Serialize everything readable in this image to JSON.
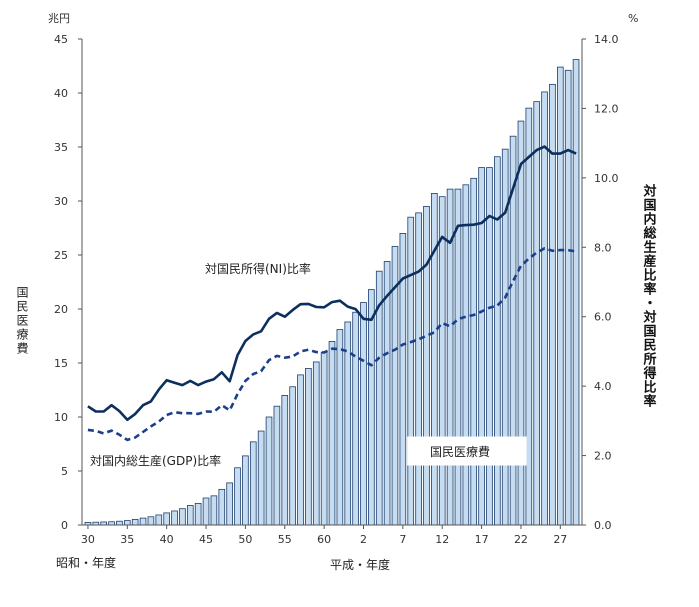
{
  "chart_data": {
    "type": "bar",
    "left_unit": "兆円",
    "right_unit": "%",
    "y_left_label": "国民医療費",
    "y_right_label": "対国内総生産比率・対国民所得比率",
    "x_label_showa": "昭和・年度",
    "x_label_heisei": "平成・年度",
    "ylim_left": [
      0,
      45
    ],
    "ylim_right": [
      0,
      14
    ],
    "left_ticks": [
      "0",
      "5",
      "10",
      "15",
      "20",
      "25",
      "30",
      "35",
      "40",
      "45"
    ],
    "right_ticks": [
      "0.0",
      "2.0",
      "4.0",
      "6.0",
      "8.0",
      "10.0",
      "12.0",
      "14.0"
    ],
    "x_ticks": [
      {
        "label": "30",
        "index": 0
      },
      {
        "label": "35",
        "index": 5
      },
      {
        "label": "40",
        "index": 10
      },
      {
        "label": "45",
        "index": 15
      },
      {
        "label": "50",
        "index": 20
      },
      {
        "label": "55",
        "index": 25
      },
      {
        "label": "60",
        "index": 30
      },
      {
        "label": "2",
        "index": 35
      },
      {
        "label": "7",
        "index": 40
      },
      {
        "label": "12",
        "index": 45
      },
      {
        "label": "17",
        "index": 50
      },
      {
        "label": "22",
        "index": 55
      },
      {
        "label": "27",
        "index": 60
      }
    ],
    "legend_bar": "国民医療費",
    "series": [
      {
        "name": "国民医療費",
        "type": "bar",
        "axis": "left",
        "color": "#c6dcf0",
        "values": [
          0.24,
          0.26,
          0.28,
          0.3,
          0.35,
          0.41,
          0.52,
          0.64,
          0.76,
          0.93,
          1.12,
          1.3,
          1.51,
          1.81,
          2.0,
          2.5,
          2.7,
          3.3,
          3.9,
          5.3,
          6.4,
          7.7,
          8.7,
          10.0,
          11.0,
          12.0,
          12.8,
          13.9,
          14.5,
          15.1,
          16.0,
          17.0,
          18.1,
          18.8,
          19.7,
          20.6,
          21.8,
          23.5,
          24.4,
          25.8,
          27.0,
          28.5,
          28.9,
          29.5,
          30.7,
          30.4,
          31.1,
          31.1,
          31.5,
          32.1,
          33.1,
          33.1,
          34.1,
          34.8,
          36.0,
          37.4,
          38.6,
          39.2,
          40.1,
          40.8,
          42.4,
          42.1,
          43.1
        ]
      },
      {
        "name": "対国民所得(NI)比率",
        "type": "line",
        "axis": "right",
        "style": "solid",
        "color": "#0d2f5e",
        "values": [
          3.42,
          3.27,
          3.27,
          3.45,
          3.28,
          3.03,
          3.2,
          3.45,
          3.56,
          3.9,
          4.17,
          4.1,
          4.03,
          4.15,
          4.03,
          4.13,
          4.2,
          4.4,
          4.14,
          4.89,
          5.3,
          5.49,
          5.58,
          5.94,
          6.11,
          6.0,
          6.19,
          6.36,
          6.37,
          6.28,
          6.27,
          6.42,
          6.46,
          6.29,
          6.22,
          5.94,
          5.91,
          6.33,
          6.6,
          6.85,
          7.1,
          7.2,
          7.3,
          7.5,
          7.9,
          8.3,
          8.13,
          8.62,
          8.64,
          8.65,
          8.7,
          8.9,
          8.8,
          9.0,
          9.7,
          10.4,
          10.6,
          10.8,
          10.9,
          10.7,
          10.7,
          10.8,
          10.7
        ]
      },
      {
        "name": "対国内総生産(GDP)比率",
        "type": "line",
        "axis": "right",
        "style": "dashed",
        "color": "#1b3f8b",
        "values": [
          2.74,
          2.71,
          2.64,
          2.72,
          2.6,
          2.45,
          2.52,
          2.68,
          2.84,
          2.98,
          3.17,
          3.25,
          3.22,
          3.22,
          3.2,
          3.27,
          3.26,
          3.45,
          3.3,
          3.77,
          4.15,
          4.35,
          4.43,
          4.75,
          4.87,
          4.82,
          4.85,
          5.0,
          5.05,
          4.98,
          4.97,
          5.08,
          5.07,
          5.0,
          4.85,
          4.73,
          4.6,
          4.82,
          4.95,
          5.05,
          5.2,
          5.27,
          5.35,
          5.45,
          5.55,
          5.82,
          5.72,
          5.93,
          6.0,
          6.05,
          6.15,
          6.26,
          6.32,
          6.55,
          7.03,
          7.47,
          7.67,
          7.85,
          7.97,
          7.9,
          7.92,
          7.92,
          7.88
        ]
      }
    ]
  },
  "annotations": {
    "ni": "対国民所得(NI)比率",
    "gdp": "対国内総生産(GDP)比率"
  }
}
